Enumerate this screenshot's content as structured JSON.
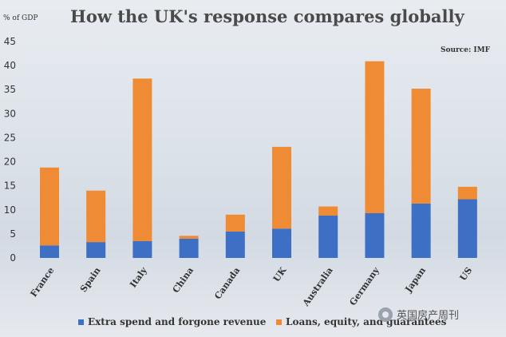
{
  "title": "How the UK's response compares globally",
  "ylabel": "% of GDP",
  "source": "Source: IMF",
  "watermark": "英国房产周刊",
  "colors": {
    "extra_spend": "#3d6fc4",
    "loans": "#ef8a35"
  },
  "legend": {
    "extra_spend": "Extra spend and forgone revenue",
    "loans": "Loans, equity, and guarantees"
  },
  "chart_data": {
    "type": "bar",
    "stacked": true,
    "title": "How the UK's response compares globally",
    "ylabel": "% of GDP",
    "ylim": [
      0,
      45
    ],
    "yticks": [
      0,
      5,
      10,
      15,
      20,
      25,
      30,
      35,
      40,
      45
    ],
    "grid": false,
    "legend_position": "bottom",
    "categories": [
      "France",
      "Spain",
      "Italy",
      "China",
      "Canada",
      "UK",
      "Australia",
      "Germany",
      "Japan",
      "US"
    ],
    "series": [
      {
        "name": "Extra spend and forgone revenue",
        "values": [
          2.6,
          3.3,
          3.5,
          4.0,
          5.5,
          6.1,
          8.8,
          9.3,
          11.3,
          12.2
        ]
      },
      {
        "name": "Loans, equity, and guarantees",
        "values": [
          16.2,
          10.7,
          33.8,
          0.6,
          3.5,
          17.0,
          1.9,
          31.6,
          23.9,
          2.6
        ]
      }
    ]
  }
}
